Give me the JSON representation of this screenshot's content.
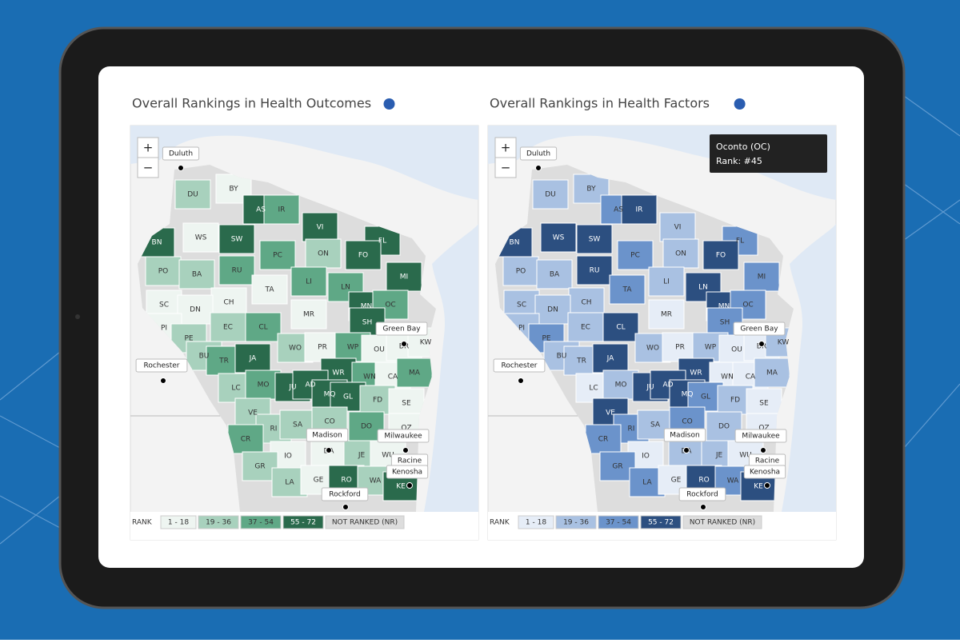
{
  "maps": [
    {
      "title": "Overall Rankings in Health Outcomes",
      "colors": [
        "#eef5f1",
        "#a8d1bd",
        "#5fa886",
        "#2a6a4c",
        "#dddddd"
      ],
      "zoom": [
        "+",
        "−"
      ],
      "counties": [
        {
          "label": "DU",
          "level": 1
        },
        {
          "label": "BY",
          "level": 0
        },
        {
          "label": "AS",
          "level": 3
        },
        {
          "label": "IR",
          "level": 2
        },
        {
          "label": "BN",
          "level": 3
        },
        {
          "label": "WS",
          "level": 0
        },
        {
          "label": "SW",
          "level": 3
        },
        {
          "label": "VI",
          "level": 3
        },
        {
          "label": "FL",
          "level": 3
        },
        {
          "label": "PC",
          "level": 2
        },
        {
          "label": "ON",
          "level": 1
        },
        {
          "label": "FO",
          "level": 3
        },
        {
          "label": "PO",
          "level": 1
        },
        {
          "label": "BA",
          "level": 1
        },
        {
          "label": "RU",
          "level": 2
        },
        {
          "label": "MI",
          "level": 3
        },
        {
          "label": "LI",
          "level": 2
        },
        {
          "label": "LN",
          "level": 2
        },
        {
          "label": "CH",
          "level": 0
        },
        {
          "label": "TA",
          "level": 0
        },
        {
          "label": "SC",
          "level": 0
        },
        {
          "label": "DN",
          "level": 0
        },
        {
          "label": "MN",
          "level": 3
        },
        {
          "label": "OC",
          "level": 2
        },
        {
          "label": "PI",
          "level": 0
        },
        {
          "label": "EC",
          "level": 1
        },
        {
          "label": "CL",
          "level": 2
        },
        {
          "label": "MR",
          "level": 0
        },
        {
          "label": "SH",
          "level": 3
        },
        {
          "label": "PE",
          "level": 1
        },
        {
          "label": "BU",
          "level": 1
        },
        {
          "label": "WO",
          "level": 1
        },
        {
          "label": "PR",
          "level": 0
        },
        {
          "label": "WP",
          "level": 2
        },
        {
          "label": "OU",
          "level": 0
        },
        {
          "label": "BR",
          "level": 0
        },
        {
          "label": "KW",
          "level": 0
        },
        {
          "label": "TR",
          "level": 2
        },
        {
          "label": "JA",
          "level": 3
        },
        {
          "label": "WR",
          "level": 3
        },
        {
          "label": "WN",
          "level": 2
        },
        {
          "label": "CA",
          "level": 0
        },
        {
          "label": "MA",
          "level": 2
        },
        {
          "label": "LC",
          "level": 1
        },
        {
          "label": "MO",
          "level": 2
        },
        {
          "label": "JU",
          "level": 3
        },
        {
          "label": "AD",
          "level": 3
        },
        {
          "label": "MQ",
          "level": 3
        },
        {
          "label": "GL",
          "level": 3
        },
        {
          "label": "FD",
          "level": 1
        },
        {
          "label": "SE",
          "level": 0
        },
        {
          "label": "VE",
          "level": 1
        },
        {
          "label": "RI",
          "level": 1
        },
        {
          "label": "SA",
          "level": 1
        },
        {
          "label": "CO",
          "level": 1
        },
        {
          "label": "DO",
          "level": 2
        },
        {
          "label": "OZ",
          "level": 0
        },
        {
          "label": "CR",
          "level": 2
        },
        {
          "label": "IO",
          "level": 0
        },
        {
          "label": "DA",
          "level": 0
        },
        {
          "label": "JE",
          "level": 1
        },
        {
          "label": "WU",
          "level": 0
        },
        {
          "label": "GR",
          "level": 1
        },
        {
          "label": "LA",
          "level": 1
        },
        {
          "label": "GE",
          "level": 0
        },
        {
          "label": "RO",
          "level": 3
        },
        {
          "label": "WA",
          "level": 1
        },
        {
          "label": "KE",
          "level": 3
        }
      ],
      "cities": [
        "Duluth",
        "Rochester",
        "Green Bay",
        "Madison",
        "Milwaukee",
        "Racine",
        "Kenosha",
        "Rockford"
      ],
      "legend": {
        "title": "RANK",
        "items": [
          "1 - 18",
          "19 - 36",
          "37 - 54",
          "55 - 72",
          "NOT RANKED (NR)"
        ]
      }
    },
    {
      "title": "Overall Rankings in Health Factors",
      "colors": [
        "#e6edf7",
        "#a9c1e2",
        "#6b93cb",
        "#2c4f80",
        "#dddddd"
      ],
      "zoom": [
        "+",
        "−"
      ],
      "counties": [
        {
          "label": "DU",
          "level": 1
        },
        {
          "label": "BY",
          "level": 1
        },
        {
          "label": "AS",
          "level": 2
        },
        {
          "label": "IR",
          "level": 3
        },
        {
          "label": "BN",
          "level": 3
        },
        {
          "label": "WS",
          "level": 3
        },
        {
          "label": "SW",
          "level": 3
        },
        {
          "label": "VI",
          "level": 1
        },
        {
          "label": "FL",
          "level": 2
        },
        {
          "label": "PC",
          "level": 2
        },
        {
          "label": "ON",
          "level": 1
        },
        {
          "label": "FO",
          "level": 3
        },
        {
          "label": "PO",
          "level": 1
        },
        {
          "label": "BA",
          "level": 1
        },
        {
          "label": "RU",
          "level": 3
        },
        {
          "label": "MI",
          "level": 2
        },
        {
          "label": "LI",
          "level": 1
        },
        {
          "label": "LN",
          "level": 3
        },
        {
          "label": "CH",
          "level": 1
        },
        {
          "label": "TA",
          "level": 2
        },
        {
          "label": "SC",
          "level": 1
        },
        {
          "label": "DN",
          "level": 1
        },
        {
          "label": "MN",
          "level": 3
        },
        {
          "label": "OC",
          "level": 2
        },
        {
          "label": "PI",
          "level": 1
        },
        {
          "label": "EC",
          "level": 1
        },
        {
          "label": "CL",
          "level": 3
        },
        {
          "label": "MR",
          "level": 0
        },
        {
          "label": "SH",
          "level": 2
        },
        {
          "label": "PE",
          "level": 2
        },
        {
          "label": "BU",
          "level": 1
        },
        {
          "label": "WO",
          "level": 1
        },
        {
          "label": "PR",
          "level": 0
        },
        {
          "label": "WP",
          "level": 1
        },
        {
          "label": "OU",
          "level": 0
        },
        {
          "label": "BR",
          "level": 0
        },
        {
          "label": "KW",
          "level": 1
        },
        {
          "label": "TR",
          "level": 1
        },
        {
          "label": "JA",
          "level": 3
        },
        {
          "label": "WR",
          "level": 3
        },
        {
          "label": "WN",
          "level": 0
        },
        {
          "label": "CA",
          "level": 0
        },
        {
          "label": "MA",
          "level": 1
        },
        {
          "label": "LC",
          "level": 0
        },
        {
          "label": "MO",
          "level": 1
        },
        {
          "label": "JU",
          "level": 3
        },
        {
          "label": "AD",
          "level": 3
        },
        {
          "label": "MQ",
          "level": 3
        },
        {
          "label": "GL",
          "level": 2
        },
        {
          "label": "FD",
          "level": 1
        },
        {
          "label": "SE",
          "level": 0
        },
        {
          "label": "VE",
          "level": 3
        },
        {
          "label": "RI",
          "level": 2
        },
        {
          "label": "SA",
          "level": 1
        },
        {
          "label": "CO",
          "level": 2
        },
        {
          "label": "DO",
          "level": 1
        },
        {
          "label": "OZ",
          "level": 0
        },
        {
          "label": "CR",
          "level": 2
        },
        {
          "label": "IO",
          "level": 0
        },
        {
          "label": "DA",
          "level": 1
        },
        {
          "label": "JE",
          "level": 1
        },
        {
          "label": "WU",
          "level": 0
        },
        {
          "label": "GR",
          "level": 2
        },
        {
          "label": "LA",
          "level": 2
        },
        {
          "label": "GE",
          "level": 0
        },
        {
          "label": "RO",
          "level": 3
        },
        {
          "label": "WA",
          "level": 2
        },
        {
          "label": "KE",
          "level": 3
        }
      ],
      "cities": [
        "Duluth",
        "Rochester",
        "Green Bay",
        "Madison",
        "Milwaukee",
        "Racine",
        "Kenosha",
        "Rockford"
      ],
      "legend": {
        "title": "RANK",
        "items": [
          "1 - 18",
          "19 - 36",
          "37 - 54",
          "55 - 72",
          "NOT RANKED (NR)"
        ]
      },
      "tooltip": {
        "title": "Oconto (OC)",
        "text": "Rank: #45"
      }
    }
  ]
}
